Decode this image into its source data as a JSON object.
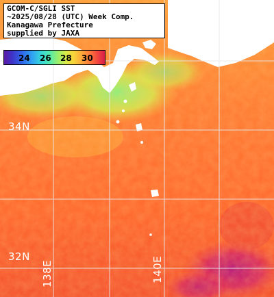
{
  "title": {
    "lines": [
      "GCOM-C/SGLI SST",
      "~2025/08/28 (UTC) Week Comp.",
      "Kanagawa Prefecture",
      "supplied by JAXA"
    ]
  },
  "colorbar": {
    "ticks": [
      "24",
      "26",
      "28",
      "30"
    ],
    "colors": [
      "#5a1aa6",
      "#2f68ea",
      "#38d8d8",
      "#96ee6e",
      "#f7d43a",
      "#ff7a3a",
      "#d61d4a"
    ]
  },
  "grid": {
    "lat_labels": [
      "34N",
      "32N"
    ],
    "lon_labels": [
      "138E",
      "140E"
    ]
  },
  "colors": {
    "land": "#ffffff",
    "gridline": "#e8e8e8",
    "sea_warm": "#ff6a2e",
    "sea_cool": "#9ef06a",
    "sea_hot": "#c9206e"
  }
}
